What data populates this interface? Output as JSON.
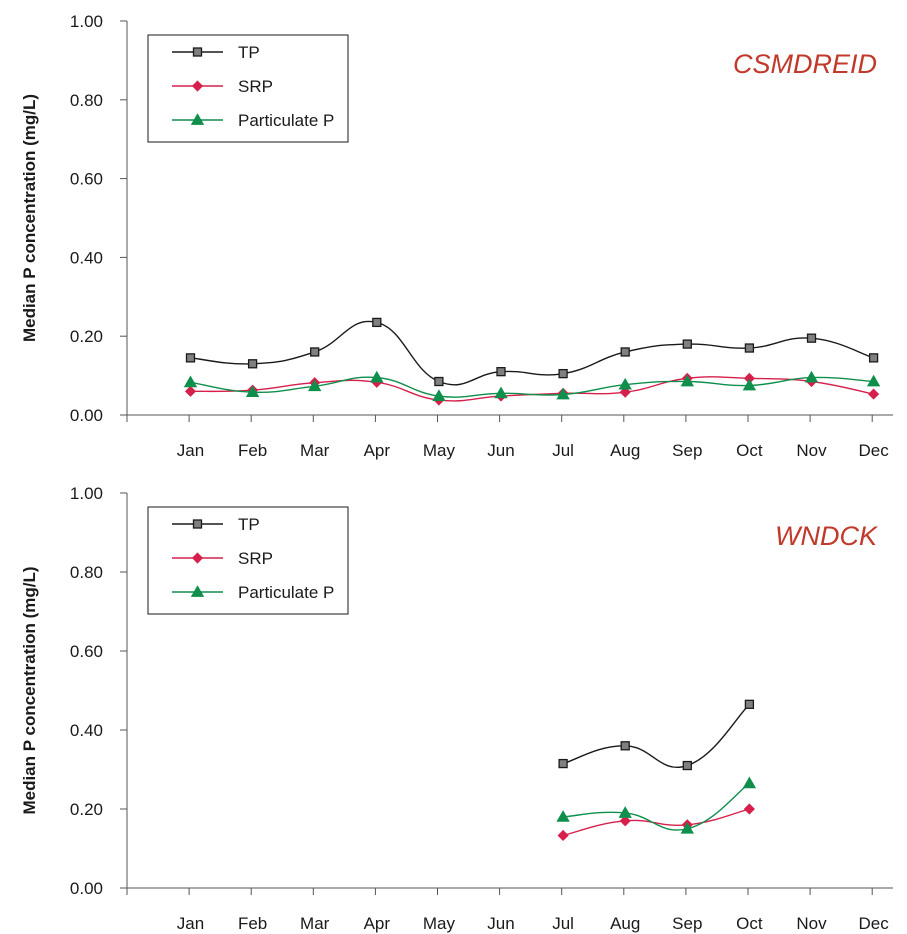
{
  "chart_data": [
    {
      "type": "line",
      "title": "CSMDREID",
      "title_color": "#c0392b",
      "ylabel": "Median P concentration (mg/L)",
      "xlabel": "",
      "categories": [
        "Jan",
        "Feb",
        "Mar",
        "Apr",
        "May",
        "Jun",
        "Jul",
        "Aug",
        "Sep",
        "Oct",
        "Nov",
        "Dec"
      ],
      "ylim": [
        0,
        1.0
      ],
      "yticks": [
        "0.00",
        "0.20",
        "0.40",
        "0.60",
        "0.80",
        "1.00"
      ],
      "grid": false,
      "legend_position": "top-left",
      "smooth": true,
      "series": [
        {
          "name": "TP",
          "color": "#1a1a1a",
          "marker": "square",
          "marker_fill": "#808080",
          "values": [
            0.145,
            0.13,
            0.16,
            0.235,
            0.085,
            0.11,
            0.105,
            0.16,
            0.18,
            0.17,
            0.195,
            0.145
          ]
        },
        {
          "name": "SRP",
          "color": "#d6204b",
          "marker": "diamond",
          "marker_fill": "#d6204b",
          "values": [
            0.06,
            0.063,
            0.082,
            0.083,
            0.038,
            0.048,
            0.055,
            0.058,
            0.093,
            0.093,
            0.085,
            0.053
          ]
        },
        {
          "name": "Particulate P",
          "color": "#0e8f4c",
          "marker": "triangle",
          "marker_fill": "#0e8f4c",
          "values": [
            0.083,
            0.058,
            0.073,
            0.095,
            0.048,
            0.055,
            0.052,
            0.077,
            0.085,
            0.075,
            0.095,
            0.085
          ]
        }
      ]
    },
    {
      "type": "line",
      "title": "WNDCK",
      "title_color": "#c0392b",
      "ylabel": "Median P concentration (mg/L)",
      "xlabel": "",
      "categories": [
        "Jan",
        "Feb",
        "Mar",
        "Apr",
        "May",
        "Jun",
        "Jul",
        "Aug",
        "Sep",
        "Oct",
        "Nov",
        "Dec"
      ],
      "ylim": [
        0,
        1.0
      ],
      "yticks": [
        "0.00",
        "0.20",
        "0.40",
        "0.60",
        "0.80",
        "1.00"
      ],
      "grid": false,
      "legend_position": "top-left",
      "smooth": true,
      "series": [
        {
          "name": "TP",
          "color": "#1a1a1a",
          "marker": "square",
          "marker_fill": "#808080",
          "values": [
            null,
            null,
            null,
            null,
            null,
            null,
            0.315,
            0.36,
            0.31,
            0.465,
            null,
            null
          ]
        },
        {
          "name": "SRP",
          "color": "#d6204b",
          "marker": "diamond",
          "marker_fill": "#d6204b",
          "values": [
            null,
            null,
            null,
            null,
            null,
            null,
            0.133,
            0.17,
            0.16,
            0.2,
            null,
            null
          ]
        },
        {
          "name": "Particulate P",
          "color": "#0e8f4c",
          "marker": "triangle",
          "marker_fill": "#0e8f4c",
          "values": [
            null,
            null,
            null,
            null,
            null,
            null,
            0.18,
            0.19,
            0.15,
            0.265,
            null,
            null
          ]
        }
      ]
    }
  ]
}
